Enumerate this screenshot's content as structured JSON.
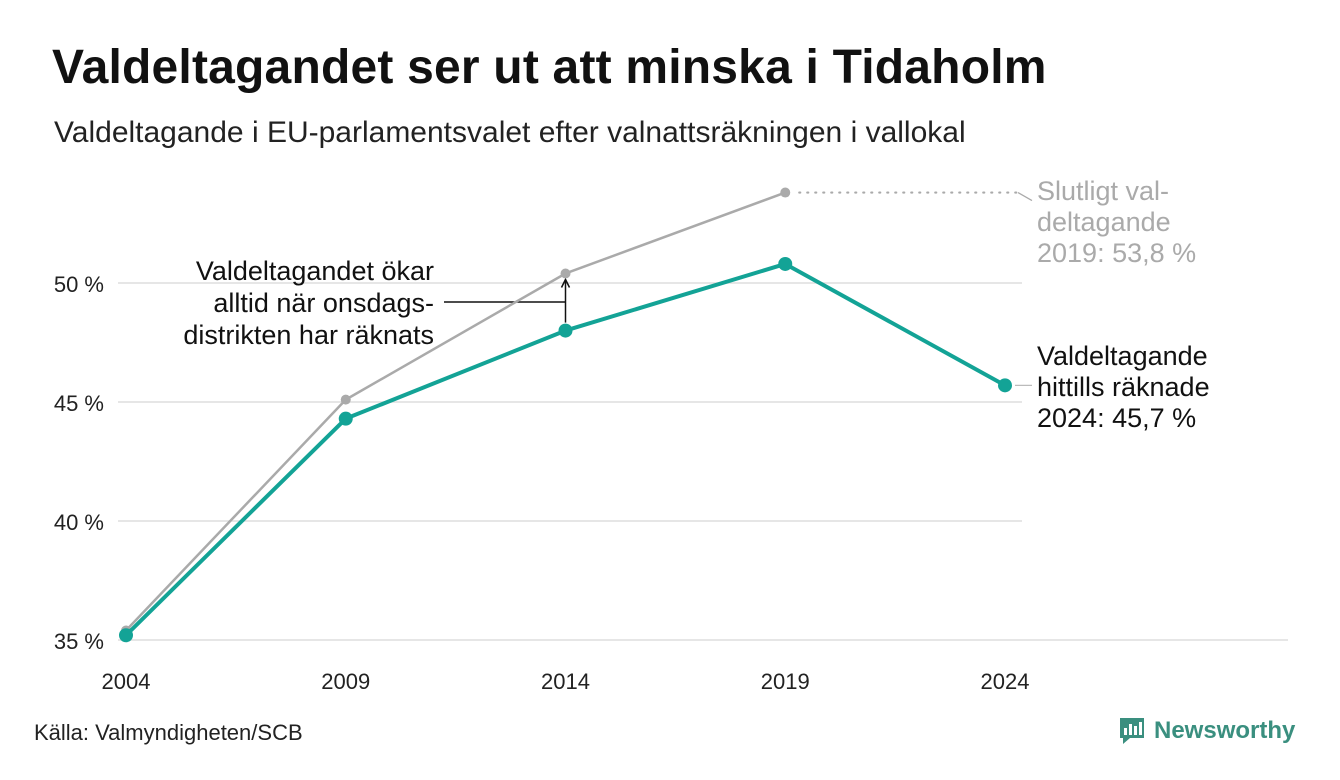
{
  "title": "Valdeltagandet ser ut att minska i Tidaholm",
  "subtitle": "Valdeltagande i EU-parlamentsvalet efter valnattsräkningen i vallokal",
  "source": "Källa: Valmyndigheten/SCB",
  "brand": "Newsworthy",
  "colors": {
    "primary_line": "#13a396",
    "final_line": "#aaaaaa",
    "grid": "#dddddd",
    "text": "#111111",
    "muted_text": "#aaaaaa",
    "brand": "#3a8f7f"
  },
  "chart_data": {
    "type": "line",
    "x": [
      "2004",
      "2009",
      "2014",
      "2019",
      "2024"
    ],
    "ylim": [
      35,
      55
    ],
    "yticks": [
      35,
      40,
      45,
      50
    ],
    "ytick_labels": [
      "35 %",
      "40 %",
      "45 %",
      "50 %"
    ],
    "grid": true,
    "series": [
      {
        "name": "Slutligt valdeltagande",
        "values": [
          35.4,
          45.1,
          50.4,
          53.8,
          null
        ]
      },
      {
        "name": "Valdeltagande hittills räknade",
        "values": [
          35.2,
          44.3,
          48.0,
          50.8,
          45.7
        ]
      }
    ],
    "annotations": {
      "onsdag": [
        "Valdeltagandet ökar",
        "alltid när onsdags-",
        "distrikten har räknats"
      ],
      "final_2019": [
        "Slutligt val-",
        "deltagande",
        "2019: 53,8 %"
      ],
      "counted_2024": [
        "Valdeltagande",
        "hittills räknade",
        "2024: 45,7 %"
      ]
    }
  }
}
